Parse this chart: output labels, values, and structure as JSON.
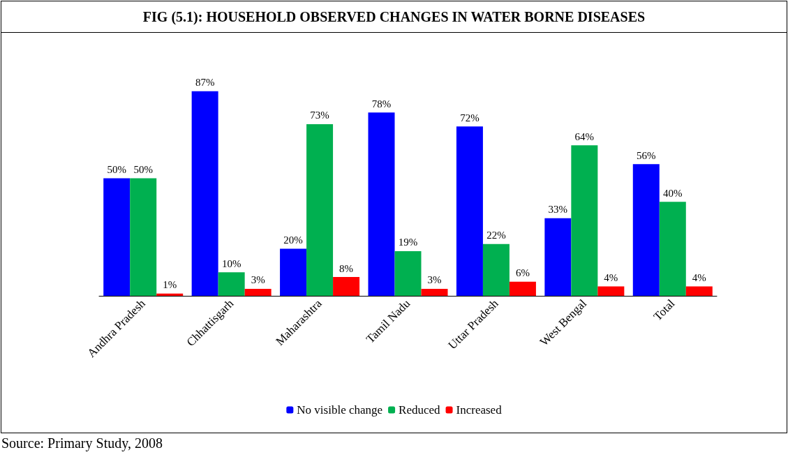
{
  "chart_data": {
    "type": "bar",
    "title": "FIG (5.1): HOUSEHOLD OBSERVED CHANGES IN WATER BORNE DISEASES",
    "categories": [
      "Andhra Pradesh",
      "Chhattisgarh",
      "Maharashtra",
      "Tamil Nadu",
      "Uttar Pradesh",
      "West Bengal",
      "Total"
    ],
    "series": [
      {
        "name": "No visible change",
        "color": "#0000ff",
        "values": [
          50,
          87,
          20,
          78,
          72,
          33,
          56
        ],
        "value_labels": [
          "50%",
          "87%",
          "20%",
          "78%",
          "72%",
          "33%",
          "56%"
        ]
      },
      {
        "name": "Reduced",
        "color": "#00b050",
        "values": [
          50,
          10,
          73,
          19,
          22,
          64,
          40
        ],
        "value_labels": [
          "50%",
          "10%",
          "73%",
          "19%",
          "22%",
          "64%",
          "40%"
        ]
      },
      {
        "name": "Increased",
        "color": "#ff0000",
        "values": [
          1,
          3,
          8,
          3,
          6,
          4,
          4
        ],
        "value_labels": [
          "1%",
          "3%",
          "8%",
          "3%",
          "6%",
          "4%",
          "4%"
        ]
      }
    ],
    "legend": "bottom",
    "annotations": [
      "Source: Primary Study, 2008"
    ]
  }
}
